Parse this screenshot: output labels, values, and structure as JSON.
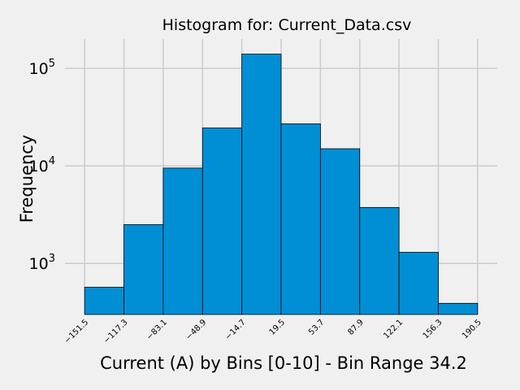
{
  "chart_data": {
    "type": "bar",
    "title": "Histogram for: Current_Data.csv",
    "xlabel": "Current (A) by Bins [0-10] - Bin Range 34.2",
    "ylabel": "Frequency",
    "y_scale": "log",
    "bin_edges": [
      "−151.5",
      "−117.3",
      "−83.1",
      "−48.9",
      "−14.7",
      "19.5",
      "53.7",
      "87.9",
      "122.1",
      "156.3",
      "190.5"
    ],
    "bin_edge_values": [
      -151.5,
      -117.3,
      -83.1,
      -48.9,
      -14.7,
      19.5,
      53.7,
      87.9,
      122.1,
      156.3,
      190.5
    ],
    "values": [
      570,
      2500,
      9500,
      24500,
      140000,
      27000,
      15000,
      3750,
      1300,
      390
    ],
    "y_ticks": [
      {
        "base": "10",
        "exp": "3",
        "value": 1000
      },
      {
        "base": "10",
        "exp": "4",
        "value": 10000
      },
      {
        "base": "10",
        "exp": "5",
        "value": 100000
      }
    ],
    "ylim": [
      300,
      200000
    ],
    "grid": true,
    "bar_color": "#008fd5",
    "edge_color": "#000000",
    "background_color": "#f0f0f0",
    "grid_color": "#cbcbcb"
  }
}
